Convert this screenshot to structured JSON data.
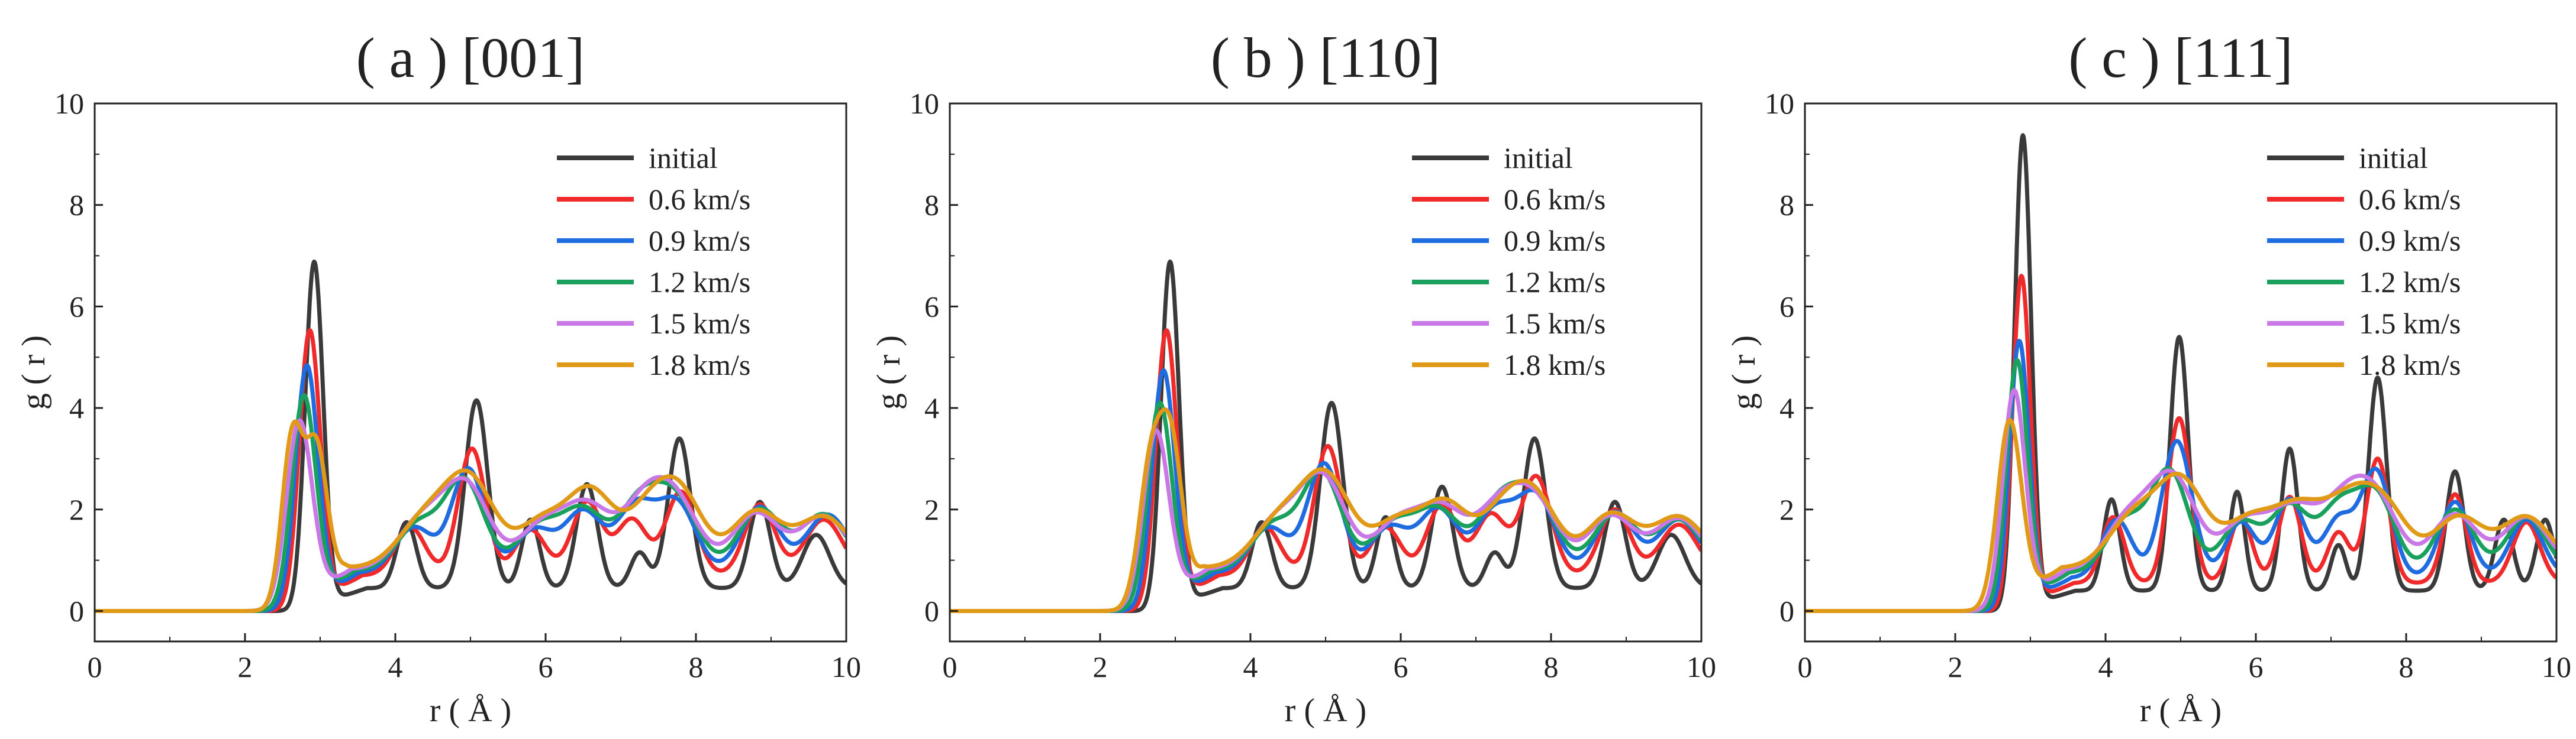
{
  "figure": {
    "xlabel": "r ( Å )",
    "ylabel": "g ( r )",
    "legend": [
      "initial",
      "0.6 km/s",
      "0.9 km/s",
      "1.2 km/s",
      "1.5 km/s",
      "1.8 km/s"
    ]
  },
  "colors": [
    "#3a3a3a",
    "#f02a2a",
    "#1f6be0",
    "#19a05c",
    "#c978e6",
    "#e09a18"
  ],
  "chart_data": [
    {
      "type": "line",
      "title": "( a ) [001]",
      "xlabel": "r ( Å )",
      "ylabel": "g ( r )",
      "xlim": [
        0,
        10
      ],
      "ylim": [
        -0.6,
        10
      ],
      "xticks": [
        0,
        2,
        4,
        6,
        8,
        10
      ],
      "yticks": [
        0,
        2,
        4,
        6,
        8,
        10
      ],
      "legend_position": "top-right",
      "series": [
        {
          "name": "initial",
          "peaks": [
            [
              2.92,
              6.8,
              0.12
            ],
            [
              4.15,
              1.3,
              0.13
            ],
            [
              5.08,
              3.7,
              0.15
            ],
            [
              5.8,
              1.35,
              0.12
            ],
            [
              6.55,
              2.05,
              0.14
            ],
            [
              7.25,
              0.7,
              0.12
            ],
            [
              7.78,
              2.95,
              0.15
            ],
            [
              8.85,
              1.7,
              0.14
            ],
            [
              9.6,
              1.05,
              0.18
            ]
          ],
          "base": 0.45
        },
        {
          "name": "0.6 km/s",
          "peaks": [
            [
              2.86,
              5.4,
              0.14
            ],
            [
              4.2,
              0.95,
              0.2
            ],
            [
              5.02,
              2.5,
              0.18
            ],
            [
              5.8,
              0.9,
              0.2
            ],
            [
              6.55,
              1.45,
              0.2
            ],
            [
              7.15,
              1.1,
              0.2
            ],
            [
              7.8,
              1.65,
              0.2
            ],
            [
              8.85,
              1.4,
              0.2
            ],
            [
              9.7,
              1.1,
              0.25
            ]
          ],
          "base": 0.7
        },
        {
          "name": "0.9 km/s",
          "peaks": [
            [
              2.82,
              4.7,
              0.15
            ],
            [
              4.25,
              0.9,
              0.25
            ],
            [
              4.97,
              2.05,
              0.22
            ],
            [
              5.85,
              0.85,
              0.25
            ],
            [
              6.5,
              1.2,
              0.25
            ],
            [
              7.2,
              1.3,
              0.25
            ],
            [
              7.75,
              1.35,
              0.25
            ],
            [
              8.85,
              1.3,
              0.25
            ],
            [
              9.75,
              1.15,
              0.28
            ]
          ],
          "base": 0.75
        },
        {
          "name": "1.2 km/s",
          "peaks": [
            [
              2.78,
              4.1,
              0.16
            ],
            [
              4.3,
              0.9,
              0.28
            ],
            [
              4.92,
              1.75,
              0.26
            ],
            [
              5.9,
              0.85,
              0.28
            ],
            [
              6.5,
              1.15,
              0.28
            ],
            [
              7.25,
              1.3,
              0.28
            ],
            [
              7.75,
              1.3,
              0.28
            ],
            [
              8.85,
              1.2,
              0.28
            ],
            [
              9.7,
              1.1,
              0.3
            ]
          ],
          "base": 0.8
        },
        {
          "name": "1.5 km/s",
          "peaks": [
            [
              2.72,
              3.6,
              0.17
            ],
            [
              4.35,
              0.95,
              0.32
            ],
            [
              4.95,
              1.6,
              0.3
            ],
            [
              5.95,
              0.85,
              0.3
            ],
            [
              6.55,
              1.2,
              0.3
            ],
            [
              7.3,
              1.2,
              0.3
            ],
            [
              7.75,
              1.2,
              0.3
            ],
            [
              8.8,
              1.1,
              0.3
            ],
            [
              9.7,
              1.05,
              0.32
            ]
          ],
          "base": 0.82
        },
        {
          "name": "1.8 km/s",
          "peaks": [
            [
              2.63,
              3.3,
              0.14
            ],
            [
              2.95,
              2.7,
              0.14
            ],
            [
              4.4,
              0.95,
              0.35
            ],
            [
              5.0,
              1.65,
              0.32
            ],
            [
              5.95,
              0.9,
              0.32
            ],
            [
              6.6,
              1.45,
              0.3
            ],
            [
              7.35,
              1.0,
              0.3
            ],
            [
              7.8,
              1.35,
              0.3
            ],
            [
              8.8,
              1.1,
              0.32
            ],
            [
              9.7,
              1.0,
              0.35
            ]
          ],
          "base": 0.85
        }
      ]
    },
    {
      "type": "line",
      "title": "( b ) [110]",
      "xlabel": "r ( Å )",
      "ylabel": "g ( r )",
      "xlim": [
        0,
        10
      ],
      "ylim": [
        -0.6,
        10
      ],
      "xticks": [
        0,
        2,
        4,
        6,
        8,
        10
      ],
      "yticks": [
        0,
        2,
        4,
        6,
        8,
        10
      ],
      "legend_position": "top-right",
      "series": [
        {
          "name": "initial",
          "peaks": [
            [
              2.93,
              6.8,
              0.12
            ],
            [
              4.15,
              1.3,
              0.13
            ],
            [
              5.08,
              3.65,
              0.15
            ],
            [
              5.8,
              1.4,
              0.12
            ],
            [
              6.55,
              2.0,
              0.14
            ],
            [
              7.25,
              0.7,
              0.12
            ],
            [
              7.78,
              2.95,
              0.15
            ],
            [
              8.85,
              1.7,
              0.14
            ],
            [
              9.6,
              1.05,
              0.18
            ]
          ],
          "base": 0.45
        },
        {
          "name": "0.6 km/s",
          "peaks": [
            [
              2.88,
              5.4,
              0.14
            ],
            [
              4.2,
              0.95,
              0.2
            ],
            [
              5.03,
              2.55,
              0.18
            ],
            [
              5.8,
              0.95,
              0.2
            ],
            [
              6.55,
              1.4,
              0.2
            ],
            [
              7.2,
              1.2,
              0.2
            ],
            [
              7.8,
              1.95,
              0.2
            ],
            [
              8.85,
              1.3,
              0.2
            ],
            [
              9.7,
              1.0,
              0.25
            ]
          ],
          "base": 0.7
        },
        {
          "name": "0.9 km/s",
          "peaks": [
            [
              2.84,
              4.6,
              0.15
            ],
            [
              4.25,
              0.9,
              0.25
            ],
            [
              4.98,
              2.15,
              0.22
            ],
            [
              5.85,
              0.9,
              0.25
            ],
            [
              6.5,
              1.25,
              0.25
            ],
            [
              7.25,
              1.2,
              0.25
            ],
            [
              7.8,
              1.5,
              0.25
            ],
            [
              8.85,
              1.2,
              0.25
            ],
            [
              9.7,
              1.05,
              0.28
            ]
          ],
          "base": 0.75
        },
        {
          "name": "1.2 km/s",
          "peaks": [
            [
              2.79,
              3.95,
              0.16
            ],
            [
              4.3,
              0.9,
              0.28
            ],
            [
              4.95,
              1.9,
              0.26
            ],
            [
              5.9,
              0.9,
              0.28
            ],
            [
              6.5,
              1.15,
              0.28
            ],
            [
              7.3,
              1.25,
              0.28
            ],
            [
              7.8,
              1.35,
              0.28
            ],
            [
              8.85,
              1.1,
              0.28
            ],
            [
              9.7,
              1.0,
              0.3
            ]
          ],
          "base": 0.8
        },
        {
          "name": "1.5 km/s",
          "peaks": [
            [
              2.74,
              3.4,
              0.17
            ],
            [
              4.35,
              0.95,
              0.32
            ],
            [
              4.97,
              1.75,
              0.3
            ],
            [
              5.95,
              0.9,
              0.3
            ],
            [
              6.55,
              1.15,
              0.3
            ],
            [
              7.3,
              1.15,
              0.3
            ],
            [
              7.8,
              1.25,
              0.3
            ],
            [
              8.8,
              1.05,
              0.3
            ],
            [
              9.7,
              1.0,
              0.32
            ]
          ],
          "base": 0.82
        },
        {
          "name": "1.8 km/s",
          "peaks": [
            [
              2.68,
              2.85,
              0.16
            ],
            [
              2.95,
              2.6,
              0.14
            ],
            [
              4.4,
              0.95,
              0.35
            ],
            [
              5.02,
              1.7,
              0.32
            ],
            [
              5.95,
              0.9,
              0.32
            ],
            [
              6.6,
              1.2,
              0.3
            ],
            [
              7.35,
              1.0,
              0.3
            ],
            [
              7.8,
              1.25,
              0.3
            ],
            [
              8.8,
              1.05,
              0.32
            ],
            [
              9.7,
              1.0,
              0.35
            ]
          ],
          "base": 0.85
        }
      ]
    },
    {
      "type": "line",
      "title": "( c ) [111]",
      "xlabel": "r ( Å )",
      "ylabel": "g ( r )",
      "xlim": [
        0,
        10
      ],
      "ylim": [
        -0.6,
        10
      ],
      "xticks": [
        0,
        2,
        4,
        6,
        8,
        10
      ],
      "yticks": [
        0,
        2,
        4,
        6,
        8,
        10
      ],
      "legend_position": "top-right",
      "series": [
        {
          "name": "initial",
          "peaks": [
            [
              2.9,
              9.3,
              0.11
            ],
            [
              4.08,
              1.8,
              0.11
            ],
            [
              4.98,
              5.0,
              0.12
            ],
            [
              5.75,
              1.95,
              0.1
            ],
            [
              6.45,
              2.8,
              0.11
            ],
            [
              7.1,
              0.9,
              0.1
            ],
            [
              7.62,
              4.2,
              0.12
            ],
            [
              8.65,
              2.35,
              0.12
            ],
            [
              9.3,
              1.4,
              0.12
            ],
            [
              9.85,
              1.4,
              0.12
            ]
          ],
          "base": 0.4
        },
        {
          "name": "0.6 km/s",
          "peaks": [
            [
              2.88,
              6.5,
              0.12
            ],
            [
              4.1,
              1.3,
              0.15
            ],
            [
              4.98,
              3.25,
              0.15
            ],
            [
              5.8,
              1.3,
              0.15
            ],
            [
              6.45,
              1.7,
              0.15
            ],
            [
              7.1,
              1.0,
              0.15
            ],
            [
              7.62,
              2.45,
              0.15
            ],
            [
              8.65,
              1.75,
              0.15
            ],
            [
              9.6,
              1.2,
              0.18
            ]
          ],
          "base": 0.55
        },
        {
          "name": "0.9 km/s",
          "peaks": [
            [
              2.85,
              5.2,
              0.13
            ],
            [
              4.15,
              1.15,
              0.2
            ],
            [
              4.95,
              2.7,
              0.2
            ],
            [
              5.8,
              1.1,
              0.2
            ],
            [
              6.45,
              1.55,
              0.2
            ],
            [
              7.1,
              1.15,
              0.2
            ],
            [
              7.6,
              2.1,
              0.2
            ],
            [
              8.65,
              1.5,
              0.2
            ],
            [
              9.6,
              1.15,
              0.22
            ]
          ],
          "base": 0.65
        },
        {
          "name": "1.2 km/s",
          "peaks": [
            [
              2.82,
              4.8,
              0.14
            ],
            [
              4.25,
              1.0,
              0.25
            ],
            [
              4.85,
              2.0,
              0.25
            ],
            [
              5.8,
              1.0,
              0.25
            ],
            [
              6.45,
              1.3,
              0.25
            ],
            [
              7.1,
              1.25,
              0.25
            ],
            [
              7.6,
              1.5,
              0.25
            ],
            [
              8.65,
              1.25,
              0.25
            ],
            [
              9.6,
              1.1,
              0.26
            ]
          ],
          "base": 0.75
        },
        {
          "name": "1.5 km/s",
          "peaks": [
            [
              2.78,
              4.2,
              0.15
            ],
            [
              4.3,
              1.0,
              0.3
            ],
            [
              4.9,
              1.8,
              0.3
            ],
            [
              5.85,
              0.95,
              0.3
            ],
            [
              6.5,
              1.15,
              0.3
            ],
            [
              7.15,
              1.15,
              0.3
            ],
            [
              7.6,
              1.3,
              0.3
            ],
            [
              8.65,
              1.1,
              0.3
            ],
            [
              9.6,
              1.05,
              0.3
            ]
          ],
          "base": 0.8
        },
        {
          "name": "1.8 km/s",
          "peaks": [
            [
              2.72,
              3.6,
              0.16
            ],
            [
              4.35,
              0.95,
              0.32
            ],
            [
              5.0,
              1.7,
              0.32
            ],
            [
              5.9,
              0.9,
              0.32
            ],
            [
              6.55,
              1.1,
              0.32
            ],
            [
              7.2,
              1.1,
              0.32
            ],
            [
              7.7,
              1.15,
              0.32
            ],
            [
              8.7,
              1.0,
              0.32
            ],
            [
              9.6,
              1.0,
              0.33
            ]
          ],
          "base": 0.85
        }
      ]
    }
  ]
}
